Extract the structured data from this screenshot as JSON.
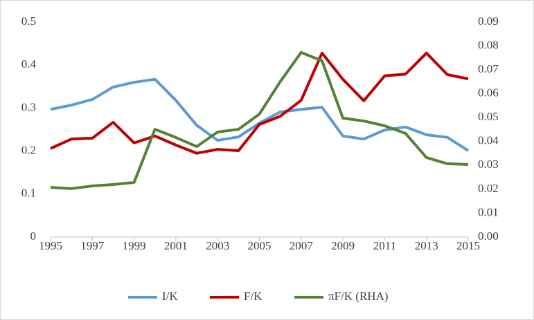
{
  "chart_data": {
    "type": "line",
    "x": [
      1995,
      1996,
      1997,
      1998,
      1999,
      2000,
      2001,
      2002,
      2003,
      2004,
      2005,
      2006,
      2007,
      2008,
      2009,
      2010,
      2011,
      2012,
      2013,
      2014,
      2015
    ],
    "xlim": [
      1995,
      2015
    ],
    "xticks": [
      1995,
      1997,
      1999,
      2001,
      2003,
      2005,
      2007,
      2009,
      2011,
      2013,
      2015
    ],
    "ylim": [
      0,
      0.5
    ],
    "yticks": [
      0,
      0.1,
      0.2,
      0.3,
      0.4,
      0.5
    ],
    "y2lim": [
      0,
      0.09
    ],
    "y2ticks": [
      {
        "value": 0,
        "label": "0.00"
      },
      0.01,
      0.02,
      0.03,
      0.04,
      0.05,
      0.06,
      0.07,
      0.08,
      0.09
    ],
    "grid": false,
    "legend": "bottom",
    "series": [
      {
        "name": "I/K",
        "color": "#5b9bd5",
        "values": [
          0.297,
          0.307,
          0.32,
          0.349,
          0.36,
          0.367,
          0.318,
          0.26,
          0.225,
          0.233,
          0.265,
          0.291,
          0.297,
          0.302,
          0.235,
          0.228,
          0.249,
          0.256,
          0.238,
          0.232,
          0.201
        ]
      },
      {
        "name": "F/K",
        "color": "#c00000",
        "values": [
          0.206,
          0.228,
          0.23,
          0.267,
          0.219,
          0.235,
          0.214,
          0.195,
          0.204,
          0.201,
          0.262,
          0.281,
          0.318,
          0.428,
          0.367,
          0.317,
          0.375,
          0.379,
          0.428,
          0.378,
          0.368
        ]
      },
      {
        "name": "πF/K (RHA)",
        "color": "#548235",
        "axis": "y2",
        "values": [
          0.0208,
          0.0203,
          0.0214,
          0.022,
          0.0229,
          0.0451,
          0.0417,
          0.0379,
          0.044,
          0.0451,
          0.0515,
          0.0651,
          0.0773,
          0.0738,
          0.0498,
          0.0486,
          0.0466,
          0.0434,
          0.0333,
          0.0307,
          0.0304
        ]
      }
    ]
  }
}
